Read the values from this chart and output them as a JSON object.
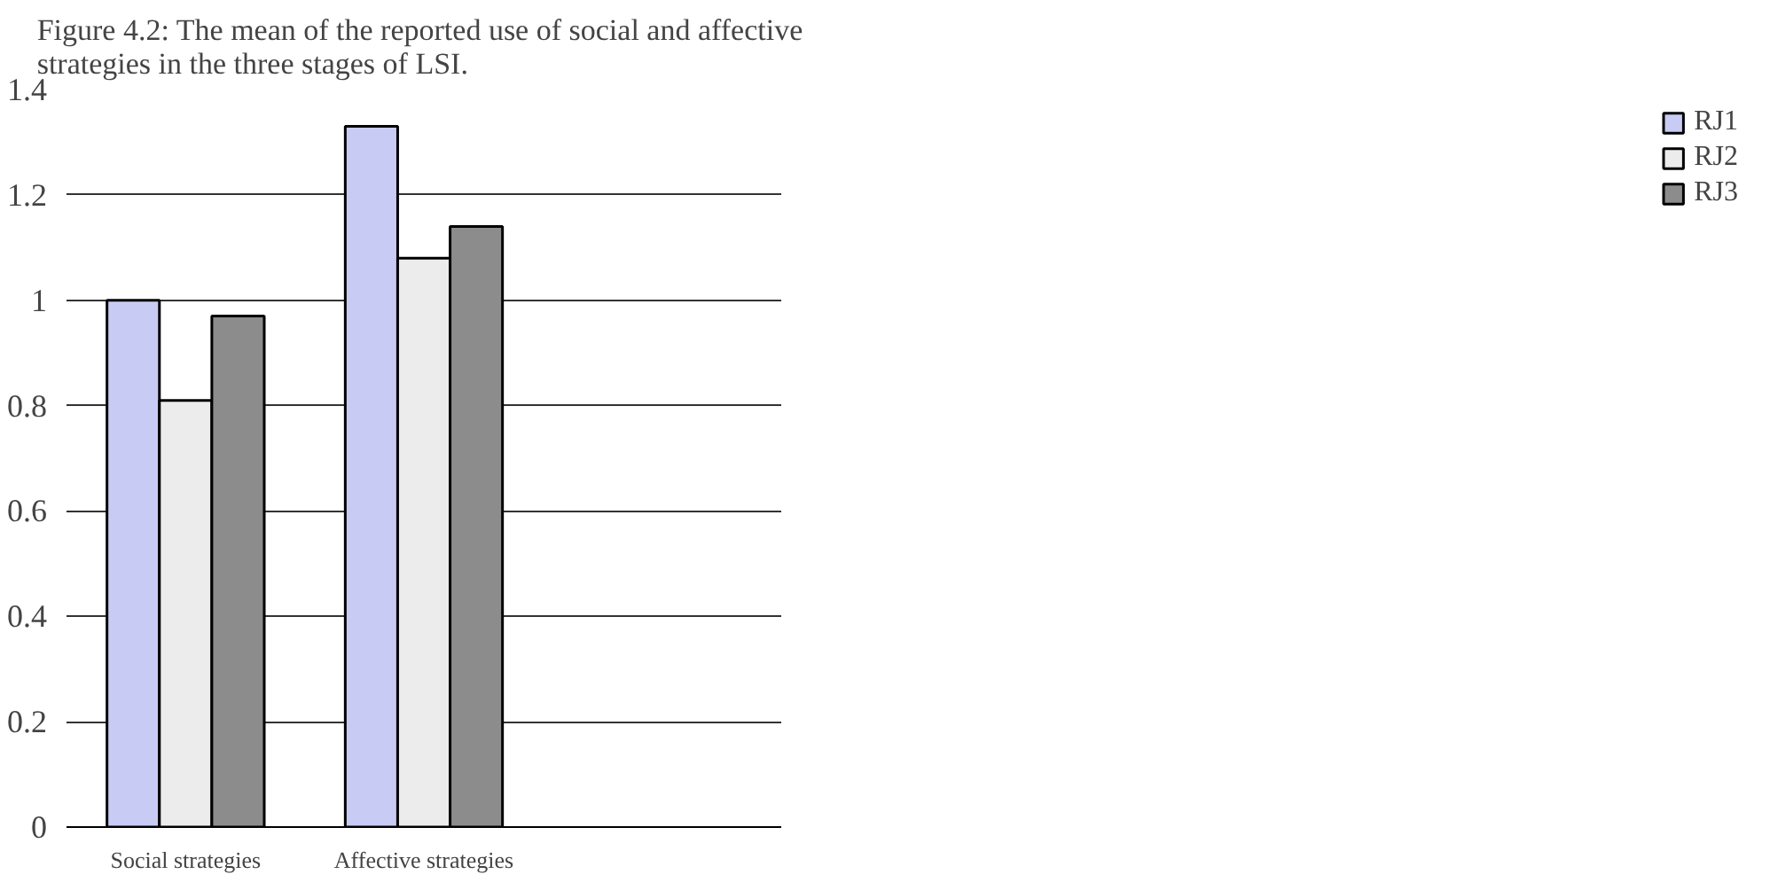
{
  "chart_data": {
    "type": "bar",
    "title": "Figure 4.2: The mean of the reported use of  social and affective\nstrategies in the three stages of LSI.",
    "categories": [
      "Social strategies",
      "Affective strategies",
      null
    ],
    "series": [
      {
        "name": "RJ1",
        "color": "#c8ccf4",
        "values": [
          1.0,
          1.33,
          null
        ]
      },
      {
        "name": "RJ2",
        "color": "#ececec",
        "values": [
          0.81,
          1.08,
          null
        ]
      },
      {
        "name": "RJ3",
        "color": "#8c8c8c",
        "values": [
          0.97,
          1.14,
          null
        ]
      }
    ],
    "ylim": [
      0,
      1.4
    ],
    "yticks": [
      0,
      0.2,
      0.4,
      0.6,
      0.8,
      1,
      1.2,
      1.4
    ],
    "grid": "y",
    "legend": "right"
  }
}
